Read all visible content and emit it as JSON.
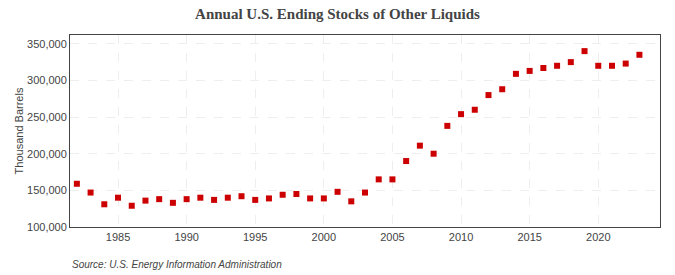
{
  "chart_data": {
    "type": "scatter",
    "title": "Annual U.S. Ending Stocks of Other Liquids",
    "ylabel": "Thousand Barrels",
    "annotations": [
      "Source: U.S. Energy Information Administration"
    ],
    "color": "#cc0000",
    "marker": "square",
    "grid": true,
    "x": [
      1982,
      1983,
      1984,
      1985,
      1986,
      1987,
      1988,
      1989,
      1990,
      1991,
      1992,
      1993,
      1994,
      1995,
      1996,
      1997,
      1998,
      1999,
      2000,
      2001,
      2002,
      2003,
      2004,
      2005,
      2006,
      2007,
      2008,
      2009,
      2010,
      2011,
      2012,
      2013,
      2014,
      2015,
      2016,
      2017,
      2018,
      2019,
      2020,
      2021,
      2022,
      2023
    ],
    "values": [
      159000,
      147000,
      131000,
      140000,
      129000,
      136000,
      138000,
      133000,
      138000,
      140000,
      137000,
      140000,
      142000,
      137000,
      139000,
      144000,
      145000,
      139000,
      139000,
      148000,
      135000,
      147000,
      165000,
      165000,
      190000,
      211000,
      200000,
      238000,
      254000,
      260000,
      280000,
      288000,
      309000,
      313000,
      317000,
      320000,
      325000,
      340000,
      320000,
      320000,
      323000,
      335000
    ],
    "xlim": [
      1981.5,
      2024.5
    ],
    "xticks": [
      1985,
      1990,
      1995,
      2000,
      2005,
      2010,
      2015,
      2020
    ],
    "ylim": [
      100000,
      362000
    ],
    "yticks": [
      {
        "value": 100000,
        "label": "100,000"
      },
      {
        "value": 150000,
        "label": "150,000"
      },
      {
        "value": 200000,
        "label": "200,000"
      },
      {
        "value": 250000,
        "label": "250,000"
      },
      {
        "value": 300000,
        "label": "300,000"
      },
      {
        "value": 350000,
        "label": "350,000"
      }
    ]
  }
}
